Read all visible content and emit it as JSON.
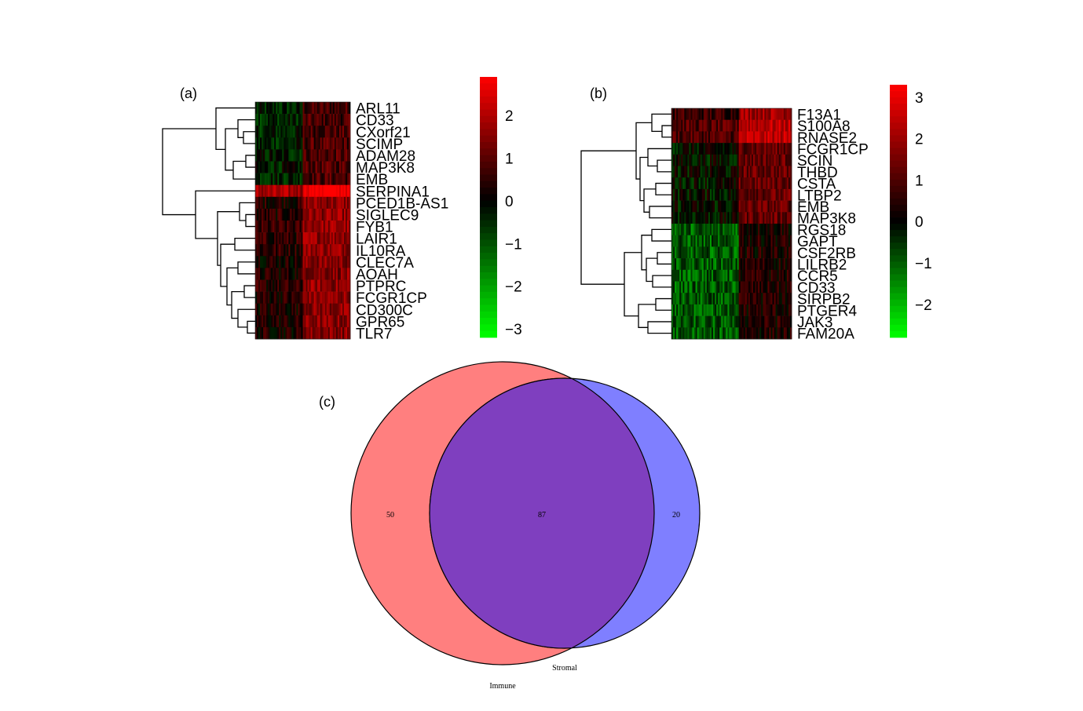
{
  "chart_data": [
    {
      "type": "heatmap",
      "panel_label": "(a)",
      "genes": [
        "ARL11",
        "CD33",
        "CXorf21",
        "SCIMP",
        "ADAM28",
        "MAP3K8",
        "EMB",
        "SERPINA1",
        "PCED1B-AS1",
        "SIGLEC9",
        "FYB1",
        "LAIR1",
        "IL10RA",
        "CLEC7A",
        "AOAH",
        "PTPRC",
        "FCGR1CP",
        "CD300C",
        "GPR65",
        "TLR7"
      ],
      "row_group_means": [
        0.2,
        0.25,
        0.3,
        0.3,
        0.35,
        0.4,
        0.35,
        2.5,
        1.1,
        1.1,
        1.2,
        1.2,
        1.2,
        1.0,
        1.0,
        1.1,
        1.1,
        1.0,
        1.0,
        1.0
      ],
      "colorbar": {
        "min": -3.2,
        "max": 2.9,
        "ticks": [
          2,
          1,
          0,
          -1,
          -2,
          -3
        ],
        "tick_labels": [
          "2",
          "1",
          "0",
          "−1",
          "−2",
          "−3"
        ]
      },
      "colors": {
        "low": "#00ff00",
        "mid": "#000000",
        "high": "#ff0000"
      }
    },
    {
      "type": "heatmap",
      "panel_label": "(b)",
      "genes": [
        "F13A1",
        "S100A8",
        "RNASE2",
        "FCGR1CP",
        "SCIN",
        "THBD",
        "CSTA",
        "LTBP2",
        "EMB",
        "MAP3K8",
        "RGS18",
        "GAPT",
        "CSF2RB",
        "LILRB2",
        "CCR5",
        "CD33",
        "SIRPB2",
        "PTGER4",
        "JAK3",
        "FAM20A"
      ],
      "row_group_means": [
        1.3,
        1.6,
        1.6,
        0.5,
        0.5,
        0.5,
        0.5,
        0.5,
        0.5,
        0.5,
        -0.4,
        -0.4,
        -0.4,
        -0.4,
        -0.4,
        -0.4,
        -0.4,
        -0.4,
        -0.4,
        -0.4
      ],
      "colorbar": {
        "min": -2.8,
        "max": 3.3,
        "ticks": [
          3,
          2,
          1,
          0,
          -1,
          -2
        ],
        "tick_labels": [
          "3",
          "2",
          "1",
          "0",
          "−1",
          "−2"
        ]
      },
      "colors": {
        "low": "#00ff00",
        "mid": "#000000",
        "high": "#ff0000"
      }
    },
    {
      "type": "venn",
      "panel_label": "(c)",
      "sets": [
        {
          "name": "Immune",
          "only": "50",
          "color": "#ff7f7f"
        },
        {
          "name": "Stromal",
          "only": "20",
          "color": "#7f7fff"
        }
      ],
      "intersection": "87",
      "overlap_color": "#7f3fbf"
    }
  ]
}
